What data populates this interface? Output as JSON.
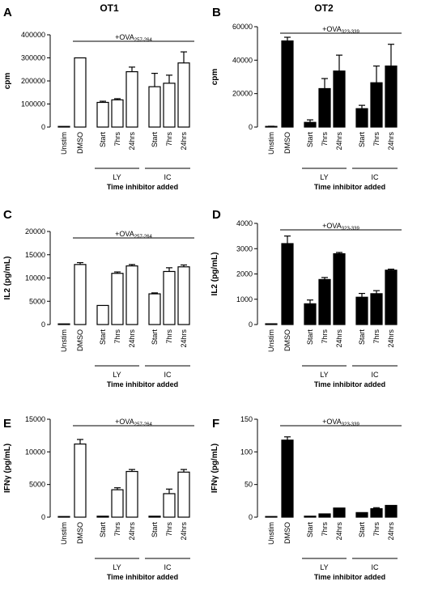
{
  "figure": {
    "col_titles": [
      "OT1",
      "OT2"
    ],
    "x_title": "Time inhibitor added",
    "group_labels": [
      "LY",
      "IC"
    ]
  },
  "chart_data": [
    {
      "panel": "A",
      "type": "bar",
      "ylabel": "cpm",
      "ylim": [
        0,
        400000
      ],
      "yticks": [
        0,
        100000,
        200000,
        300000,
        400000
      ],
      "ytick_labels": [
        "0",
        "100000",
        "200000",
        "300000",
        "400000"
      ],
      "fill": "#ffffff",
      "stim_label_main": "+OVA",
      "stim_label_sub": "257-264",
      "categories": [
        "Unstim",
        "DMSO",
        "Start",
        "7hrs",
        "24hrs",
        "Start",
        "7hrs",
        "24hrs"
      ],
      "values": [
        0,
        300000,
        107000,
        118000,
        240000,
        175000,
        190000,
        278000
      ],
      "errors": [
        0,
        0,
        5000,
        5000,
        20000,
        58000,
        35000,
        48000
      ]
    },
    {
      "panel": "B",
      "type": "bar",
      "ylabel": "cpm",
      "ylim": [
        0,
        60000
      ],
      "yticks": [
        0,
        20000,
        40000,
        60000
      ],
      "ytick_labels": [
        "0",
        "20000",
        "40000",
        "60000"
      ],
      "fill": "#000000",
      "stim_label_main": "+OVA",
      "stim_label_sub": "323-339",
      "categories": [
        "Unstim",
        "DMSO",
        "Start",
        "7hrs",
        "24hrs",
        "Start",
        "7hrs",
        "24hrs"
      ],
      "values": [
        300,
        51500,
        2800,
        23000,
        33500,
        11000,
        26500,
        36500
      ],
      "errors": [
        200,
        2200,
        1500,
        6000,
        9500,
        2000,
        10000,
        13000
      ]
    },
    {
      "panel": "C",
      "type": "bar",
      "ylabel": "IL2 (pg/mL)",
      "ylim": [
        0,
        20000
      ],
      "yticks": [
        0,
        5000,
        10000,
        15000,
        20000
      ],
      "ytick_labels": [
        "0",
        "5000",
        "10000",
        "15000",
        "20000"
      ],
      "fill": "#ffffff",
      "stim_label_main": "+OVA",
      "stim_label_sub": "257-264",
      "categories": [
        "Unstim",
        "DMSO",
        "Start",
        "7hrs",
        "24hrs",
        "Start",
        "7hrs",
        "24hrs"
      ],
      "values": [
        0,
        12900,
        4100,
        11000,
        12600,
        6600,
        11400,
        12400
      ],
      "errors": [
        0,
        400,
        0,
        300,
        300,
        200,
        800,
        400
      ]
    },
    {
      "panel": "D",
      "type": "bar",
      "ylabel": "IL2 (pg/mL)",
      "ylim": [
        0,
        4000
      ],
      "yticks": [
        0,
        1000,
        2000,
        3000,
        4000
      ],
      "ytick_labels": [
        "0",
        "1000",
        "2000",
        "3000",
        "4000"
      ],
      "fill": "#000000",
      "stim_label_main": "+OVA",
      "stim_label_sub": "323-339",
      "categories": [
        "Unstim",
        "DMSO",
        "Start",
        "7hrs",
        "24hrs",
        "Start",
        "7hrs",
        "24hrs"
      ],
      "values": [
        30,
        3200,
        820,
        1780,
        2800,
        1080,
        1220,
        2150
      ],
      "errors": [
        0,
        300,
        150,
        80,
        50,
        150,
        120,
        40
      ]
    },
    {
      "panel": "E",
      "type": "bar",
      "ylabel": "IFNγ (pg/mL)",
      "ylim": [
        0,
        15000
      ],
      "yticks": [
        0,
        5000,
        10000,
        15000
      ],
      "ytick_labels": [
        "0",
        "5000",
        "10000",
        "15000"
      ],
      "fill": "#ffffff",
      "stim_label_main": "+OVA",
      "stim_label_sub": "257-264",
      "categories": [
        "Unstim",
        "DMSO",
        "Start",
        "7hrs",
        "24hrs",
        "Start",
        "7hrs",
        "24hrs"
      ],
      "values": [
        0,
        11200,
        150,
        4200,
        7000,
        150,
        3600,
        6900
      ],
      "errors": [
        0,
        700,
        0,
        300,
        300,
        0,
        700,
        400
      ]
    },
    {
      "panel": "F",
      "type": "bar",
      "ylabel": "IFNγ (pg/mL)",
      "ylim": [
        0,
        150
      ],
      "yticks": [
        0,
        50,
        100,
        150
      ],
      "ytick_labels": [
        "0",
        "50",
        "100",
        "150"
      ],
      "fill": "#000000",
      "stim_label_main": "+OVA",
      "stim_label_sub": "323-339",
      "categories": [
        "Unstim",
        "DMSO",
        "Start",
        "7hrs",
        "24hrs",
        "Start",
        "7hrs",
        "24hrs"
      ],
      "values": [
        0.5,
        118,
        1.5,
        5,
        14,
        7,
        13,
        18
      ],
      "errors": [
        0,
        5,
        0,
        0,
        0,
        0,
        1.5,
        0
      ]
    }
  ]
}
